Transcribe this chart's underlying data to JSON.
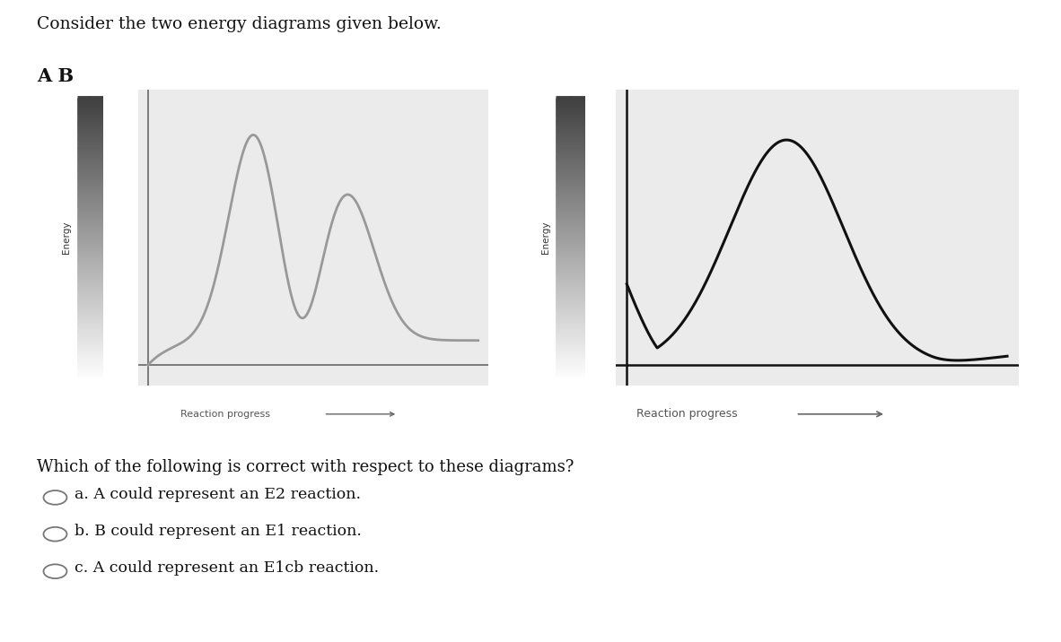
{
  "title": "Consider the two energy diagrams given below.",
  "ab_label": "A B",
  "background_color": "#ffffff",
  "plot_bg_color": "#ebebeb",
  "question": "Which of the following is correct with respect to these diagrams?",
  "options": [
    "a. A could represent an E2 reaction.",
    "b. B could represent an E1 reaction.",
    "c. A could represent an E1cb reaction."
  ],
  "reaction_progress_label": "Reaction progress",
  "energy_label": "Energy",
  "curve_A_color": "#999999",
  "curve_B_color": "#111111"
}
